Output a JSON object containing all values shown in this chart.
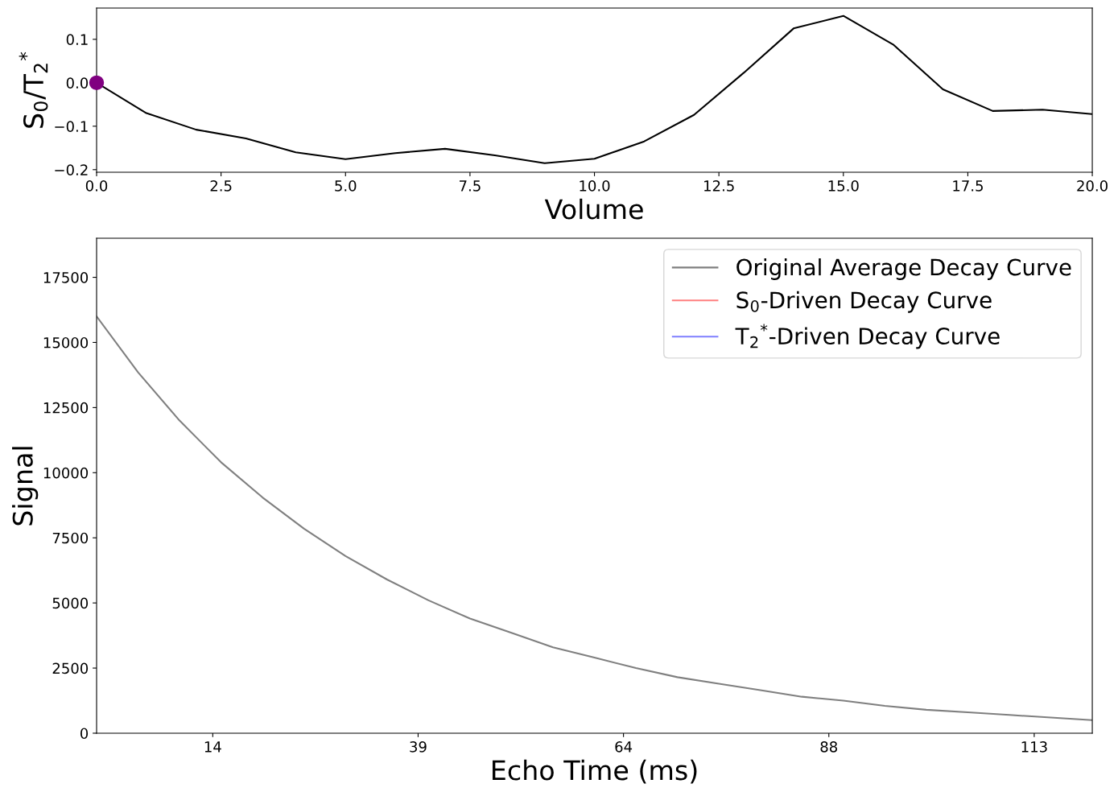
{
  "chart_data": [
    {
      "type": "line",
      "xlabel": "Volume",
      "ylabel": "S$_{0}$/T$_{2}$$^{*}$",
      "xlim": [
        0,
        20
      ],
      "ylim": [
        -0.206,
        0.172
      ],
      "xticks": [
        {
          "value": 0,
          "label": "0.0"
        },
        {
          "value": 2.5,
          "label": "2.5"
        },
        {
          "value": 5,
          "label": "5.0"
        },
        {
          "value": 7.5,
          "label": "7.5"
        },
        {
          "value": 10,
          "label": "10.0"
        },
        {
          "value": 12.5,
          "label": "12.5"
        },
        {
          "value": 15,
          "label": "15.0"
        },
        {
          "value": 17.5,
          "label": "17.5"
        },
        {
          "value": 20,
          "label": "20.0"
        }
      ],
      "yticks": [
        {
          "value": -0.2,
          "label": "−0.2"
        },
        {
          "value": -0.1,
          "label": "−0.1"
        },
        {
          "value": 0,
          "label": "0.0"
        },
        {
          "value": 0.1,
          "label": "0.1"
        }
      ],
      "grid": false,
      "legend": false,
      "series": [
        {
          "type": "line",
          "color": "#000000",
          "x": [
            0,
            1,
            2,
            3,
            4,
            5,
            6,
            7,
            8,
            9,
            10,
            11,
            12,
            13,
            14,
            15,
            16,
            17,
            18,
            19,
            20
          ],
          "values": [
            0,
            -0.07,
            -0.108,
            -0.128,
            -0.16,
            -0.176,
            -0.162,
            -0.152,
            -0.167,
            -0.185,
            -0.175,
            -0.135,
            -0.074,
            0.023,
            0.125,
            0.154,
            0.088,
            -0.015,
            -0.065,
            -0.062,
            -0.072
          ]
        },
        {
          "type": "scatter",
          "color": "#800080",
          "x": [
            0
          ],
          "values": [
            0
          ]
        }
      ]
    },
    {
      "type": "line",
      "xlabel": "Echo Time (ms)",
      "ylabel": "Signal",
      "xlim": [
        0,
        120
      ],
      "ylim": [
        0,
        19000
      ],
      "xticks": [
        {
          "value": 14,
          "label": "14"
        },
        {
          "value": 38.75,
          "label": "39"
        },
        {
          "value": 63.5,
          "label": "64"
        },
        {
          "value": 88.25,
          "label": "88"
        },
        {
          "value": 113,
          "label": "113"
        }
      ],
      "yticks": [
        0,
        2500,
        5000,
        7500,
        10000,
        12500,
        15000,
        17500
      ],
      "grid": false,
      "legend": "top right",
      "x": [
        0,
        5,
        10,
        15,
        20,
        25,
        30,
        35,
        40,
        45,
        50,
        55,
        60,
        65,
        70,
        75,
        80,
        85,
        90,
        95,
        100,
        105,
        110,
        115,
        120
      ],
      "series": [
        {
          "name": "Original Average Decay Curve",
          "color": "#000000",
          "values": [
            16000,
            13850,
            12000,
            10400,
            9050,
            7850,
            6800,
            5900,
            5100,
            4400,
            3850,
            3300,
            2900,
            2500,
            2150,
            1900,
            1650,
            1400,
            1250,
            1050,
            900,
            800,
            700,
            600,
            500
          ]
        },
        {
          "name": "S$_{0}$-Driven Decay Curve",
          "color": "#ff0000",
          "values": [
            null,
            null,
            null,
            null,
            null,
            null,
            null,
            null,
            null,
            null,
            null,
            null,
            null,
            null,
            null,
            null,
            null,
            null,
            null,
            null,
            null,
            null,
            null,
            null,
            null
          ]
        },
        {
          "name": "T$_{2}$$^{*}$-Driven Decay Curve",
          "color": "#0000ff",
          "values": [
            null,
            null,
            null,
            null,
            null,
            null,
            null,
            null,
            null,
            null,
            null,
            null,
            null,
            null,
            null,
            null,
            null,
            null,
            null,
            null,
            null,
            null,
            null,
            null,
            null
          ]
        }
      ]
    }
  ]
}
